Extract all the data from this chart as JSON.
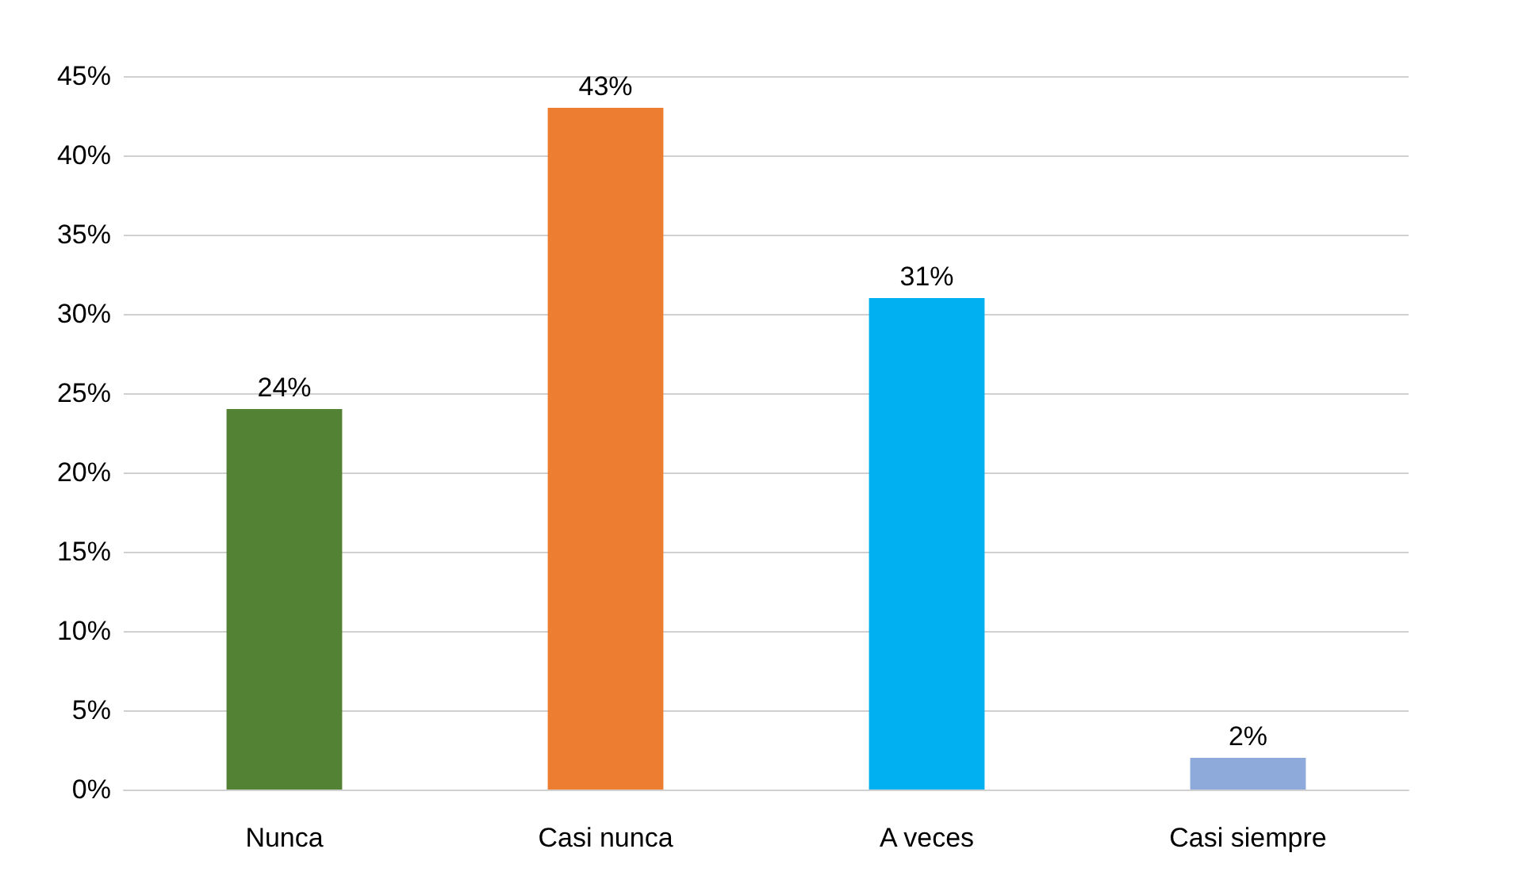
{
  "chart_data": {
    "type": "bar",
    "categories": [
      "Nunca",
      "Casi nunca",
      "A veces",
      "Casi siempre"
    ],
    "values": [
      24,
      43,
      31,
      2
    ],
    "colors": [
      "#548235",
      "#ed7d31",
      "#00b0f0",
      "#8eaadb"
    ],
    "value_labels": [
      "24%",
      "43%",
      "31%",
      "2%"
    ],
    "ylim": [
      0,
      45
    ],
    "yticks": [
      {
        "value": 0,
        "label": "0%"
      },
      {
        "value": 5,
        "label": "5%"
      },
      {
        "value": 10,
        "label": "10%"
      },
      {
        "value": 15,
        "label": "15%"
      },
      {
        "value": 20,
        "label": "20%"
      },
      {
        "value": 25,
        "label": "25%"
      },
      {
        "value": 30,
        "label": "30%"
      },
      {
        "value": 35,
        "label": "35%"
      },
      {
        "value": 40,
        "label": "40%"
      },
      {
        "value": 45,
        "label": "45%"
      }
    ],
    "grid": true
  }
}
